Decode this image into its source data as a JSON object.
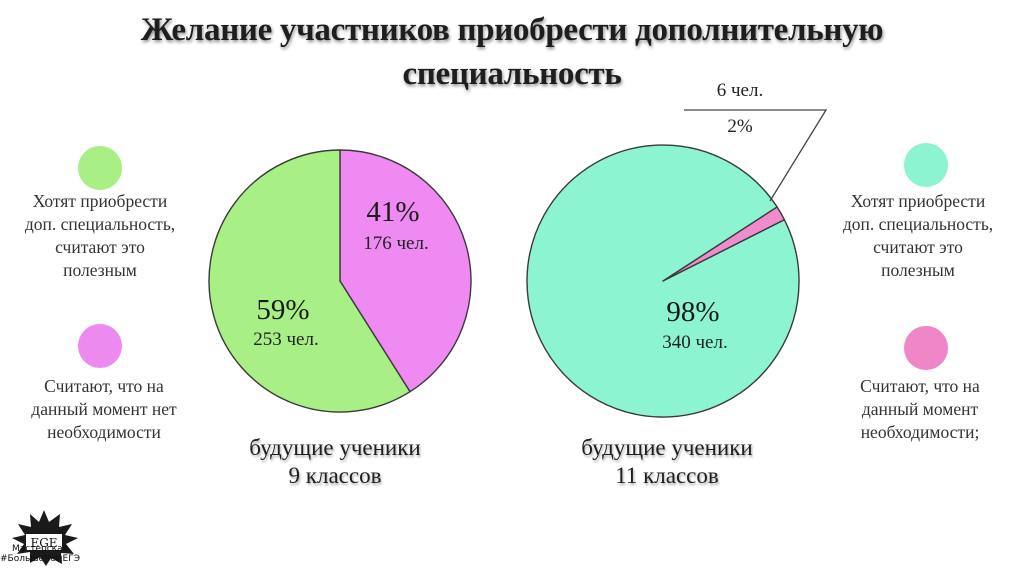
{
  "title": {
    "line1": "Желание участников приобрести дополнительную",
    "line2": "специальность"
  },
  "legend_left": {
    "item1": {
      "color": "#a8ef86",
      "lines": [
        "Хотят приобрести",
        "доп. специальность,",
        "считают это",
        "полезным"
      ]
    },
    "item2": {
      "color": "#ec8af0",
      "lines": [
        "Считают, что на",
        "данный момент нет",
        "необходимости"
      ]
    }
  },
  "legend_right": {
    "item1": {
      "color": "#8cf4d0",
      "lines": [
        "Хотят приобрести",
        "доп. специальность,",
        "считают это",
        "полезным"
      ]
    },
    "item2": {
      "color": "#ee86c8",
      "lines": [
        "Считают, что на",
        "данный момент",
        "необходимости;"
      ]
    }
  },
  "logo": {
    "mark": "EGE",
    "line1": "Мастерская",
    "line2": "#БольшеЧемЕГЭ"
  },
  "chart_data": [
    {
      "type": "pie",
      "title": "будущие ученики 9 классов",
      "title_lines": [
        "будущие ученики",
        "9 классов"
      ],
      "slices": [
        {
          "percent_label": "59%",
          "count_label": "253 чел.",
          "value": 253,
          "color": "#a8ef86"
        },
        {
          "percent_label": "41%",
          "count_label": "176 чел.",
          "value": 176,
          "color": "#ee8af2"
        }
      ]
    },
    {
      "type": "pie",
      "title": "будущие ученики 11 классов",
      "title_lines": [
        "будущие ученики",
        "11 классов"
      ],
      "slices": [
        {
          "percent_label": "98%",
          "count_label": "340 чел.",
          "value": 340,
          "color": "#8cf4d0"
        },
        {
          "percent_label": "2%",
          "count_label": "6 чел.",
          "value": 6,
          "color": "#f08ccc"
        }
      ]
    }
  ]
}
